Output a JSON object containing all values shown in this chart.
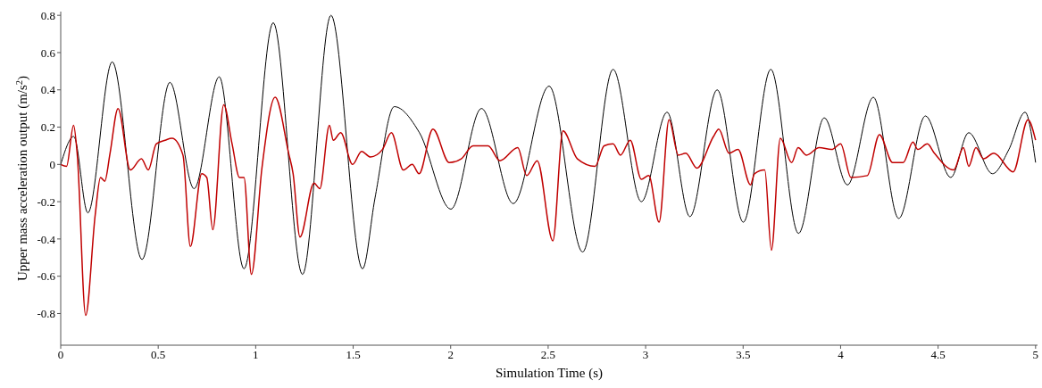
{
  "chart_data": {
    "type": "line",
    "xlabel": "Simulation Time (s)",
    "ylabel": "Upper mass acceleration output (m/s$^{2}$)",
    "xlim": [
      0,
      5.01
    ],
    "ylim": [
      -0.97,
      0.82
    ],
    "xticks": [
      0,
      0.5,
      1,
      1.5,
      2,
      2.5,
      3,
      3.5,
      4,
      4.5,
      5
    ],
    "yticks": [
      -0.8,
      -0.6,
      -0.4,
      -0.2,
      0,
      0.2,
      0.4,
      0.6,
      0.8
    ],
    "grid": false,
    "marker": "none",
    "line_style": "solid",
    "series": [
      {
        "color": "#000000",
        "x": [
          0,
          0.067,
          0.139,
          0.264,
          0.417,
          0.56,
          0.684,
          0.813,
          0.94,
          1.09,
          1.24,
          1.386,
          1.548,
          1.612,
          1.711,
          1.84,
          2.001,
          2.158,
          2.321,
          2.505,
          2.677,
          2.833,
          2.978,
          3.11,
          3.227,
          3.367,
          3.501,
          3.642,
          3.784,
          3.916,
          4.035,
          4.168,
          4.298,
          4.435,
          4.565,
          4.657,
          4.779,
          4.863,
          4.946,
          5.0
        ],
        "values": [
          0,
          0.15,
          -0.26,
          0.55,
          -0.51,
          0.44,
          -0.13,
          0.47,
          -0.56,
          0.76,
          -0.59,
          0.8,
          -0.56,
          -0.18,
          0.31,
          0.17,
          -0.24,
          0.3,
          -0.21,
          0.42,
          -0.47,
          0.51,
          -0.2,
          0.28,
          -0.28,
          0.4,
          -0.31,
          0.51,
          -0.37,
          0.25,
          -0.11,
          0.36,
          -0.29,
          0.26,
          -0.07,
          0.17,
          -0.05,
          0.08,
          0.28,
          0.01
        ]
      },
      {
        "color": "#c00000",
        "x": [
          0,
          0.03,
          0.066,
          0.085,
          0.128,
          0.177,
          0.204,
          0.226,
          0.253,
          0.294,
          0.357,
          0.414,
          0.449,
          0.49,
          0.536,
          0.571,
          0.627,
          0.665,
          0.723,
          0.749,
          0.78,
          0.836,
          0.879,
          0.917,
          0.94,
          0.978,
          1.032,
          1.1,
          1.169,
          1.192,
          1.227,
          1.299,
          1.329,
          1.378,
          1.398,
          1.436,
          1.497,
          1.543,
          1.589,
          1.65,
          1.696,
          1.757,
          1.803,
          1.838,
          1.909,
          1.993,
          2.054,
          2.115,
          2.192,
          2.253,
          2.344,
          2.39,
          2.444,
          2.524,
          2.576,
          2.65,
          2.741,
          2.787,
          2.833,
          2.871,
          2.921,
          2.978,
          3.016,
          3.069,
          3.12,
          3.168,
          3.206,
          3.263,
          3.348,
          3.375,
          3.428,
          3.474,
          3.538,
          3.558,
          3.611,
          3.645,
          3.691,
          3.749,
          3.782,
          3.825,
          3.89,
          3.954,
          4.0,
          4.053,
          4.137,
          4.199,
          4.267,
          4.321,
          4.371,
          4.396,
          4.445,
          4.481,
          4.58,
          4.63,
          4.657,
          4.694,
          4.733,
          4.786,
          4.885,
          4.961,
          5.0
        ],
        "values": [
          0,
          -0.01,
          0.21,
          0.05,
          -0.81,
          -0.27,
          -0.07,
          -0.09,
          0.06,
          0.3,
          -0.03,
          0.03,
          -0.03,
          0.11,
          0.13,
          0.14,
          0.05,
          -0.44,
          -0.05,
          -0.07,
          -0.35,
          0.32,
          0.11,
          -0.07,
          -0.07,
          -0.59,
          -0.02,
          0.36,
          0.06,
          -0.05,
          -0.39,
          -0.1,
          -0.13,
          0.21,
          0.13,
          0.17,
          0,
          0.07,
          0.04,
          0.08,
          0.17,
          -0.03,
          0,
          -0.05,
          0.19,
          0.01,
          0.03,
          0.1,
          0.1,
          0.02,
          0.09,
          -0.06,
          0.02,
          -0.41,
          0.18,
          0.03,
          -0.01,
          0.1,
          0.11,
          0.05,
          0.13,
          -0.08,
          -0.06,
          -0.31,
          0.24,
          0.05,
          0.06,
          -0.02,
          0.15,
          0.19,
          0.06,
          0.08,
          -0.11,
          -0.05,
          -0.03,
          -0.46,
          0.14,
          0.01,
          0.09,
          0.05,
          0.09,
          0.08,
          0.11,
          -0.07,
          -0.06,
          0.16,
          0.01,
          0.01,
          0.12,
          0.08,
          0.11,
          0.06,
          -0.03,
          0.09,
          -0.01,
          0.09,
          0.03,
          0.06,
          -0.04,
          0.24,
          0.13
        ]
      }
    ]
  }
}
